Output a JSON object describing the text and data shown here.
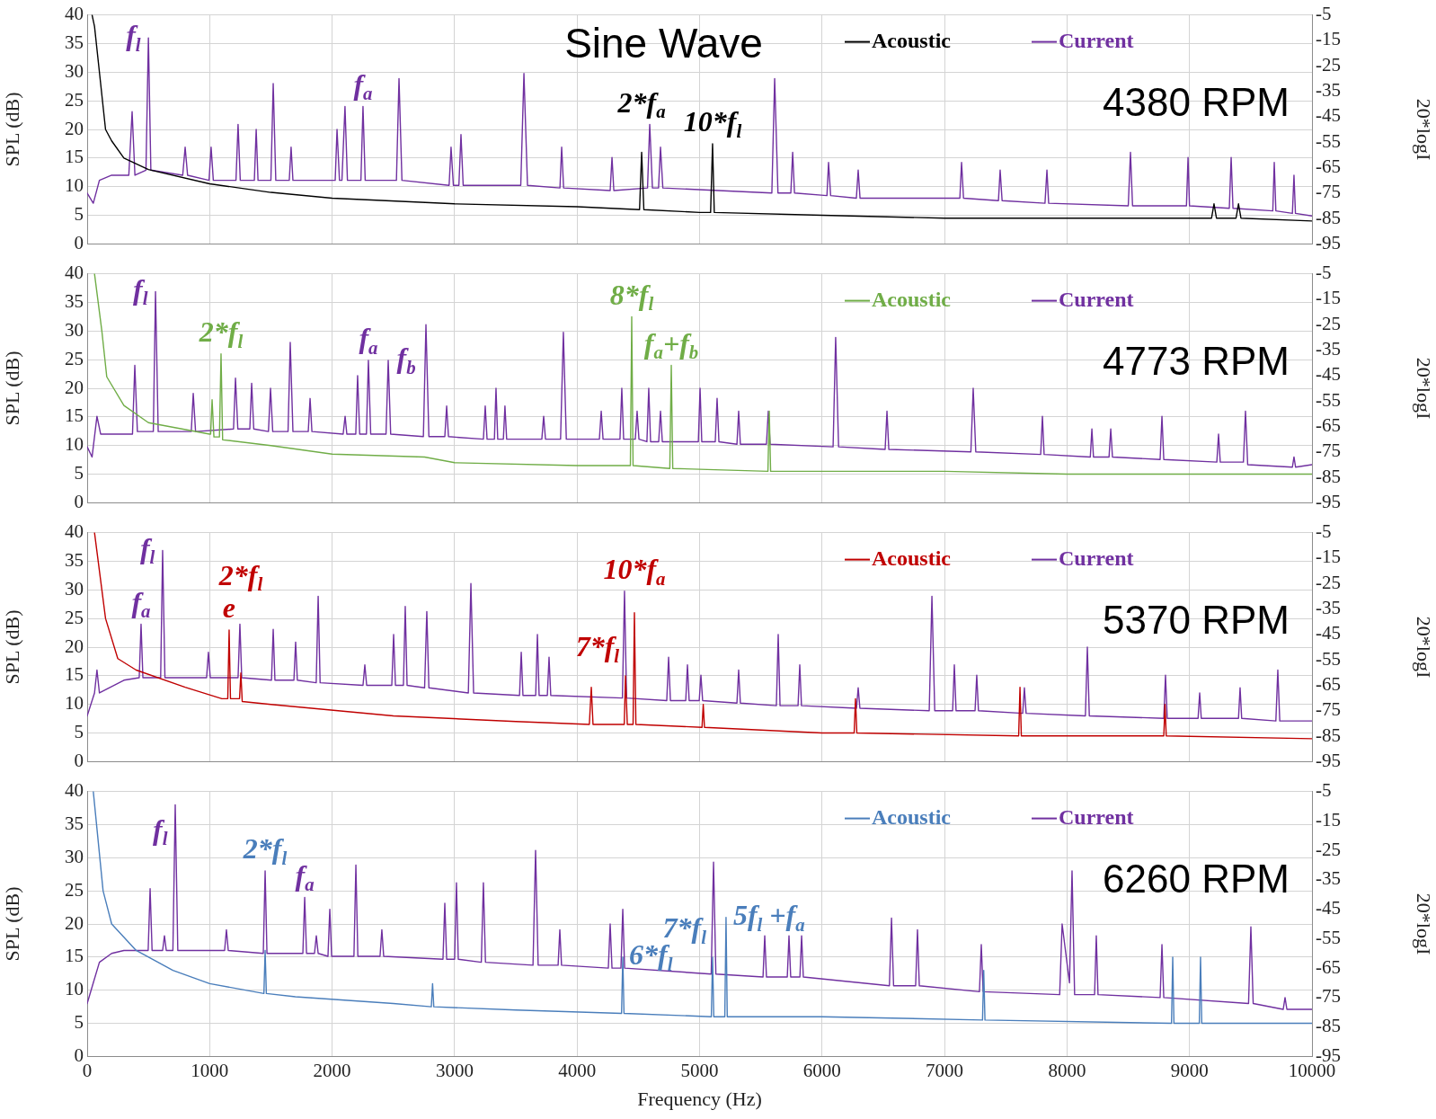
{
  "chart_data": [
    {
      "type": "line",
      "title": "Sine Wave",
      "ylabel": "SPL (dB)",
      "y2label": "20*logI",
      "xlim": [
        0,
        10000
      ],
      "xticks": [
        0,
        1000,
        2000,
        3000,
        4000,
        5000,
        6000,
        7000,
        8000,
        9000,
        10000
      ],
      "ylim": [
        0,
        40
      ],
      "yticks": [
        0,
        5,
        10,
        15,
        20,
        25,
        30,
        35,
        40
      ],
      "y2lim": [
        -95,
        -5
      ],
      "y2ticks": [
        -95,
        -85,
        -75,
        -65,
        -55,
        -45,
        -35,
        -25,
        -15,
        -5
      ],
      "grid": true,
      "legend": "top right",
      "marker": "none",
      "line_style": "solid",
      "tick_labels": "y",
      "series": [
        {
          "name": "Acoustic",
          "color": "#000000",
          "x": [
            40,
            60,
            100,
            150,
            200,
            300,
            500,
            1000,
            1500,
            2000,
            3000,
            4000,
            4510,
            4527,
            4545,
            5000,
            5090,
            5106,
            5120,
            6000,
            7000,
            8000,
            9180,
            9200,
            9220,
            9380,
            9400,
            9420,
            10000
          ],
          "values": [
            40,
            38,
            30,
            20,
            18,
            15,
            13,
            10.5,
            9,
            8,
            7,
            6.5,
            6,
            16,
            6,
            5.5,
            5.5,
            17.5,
            5.5,
            5,
            4.5,
            4.5,
            4.5,
            7,
            4.5,
            4.5,
            7,
            4.5,
            4
          ]
        },
        {
          "name": "Current",
          "color": "#7030a0",
          "axis": "y2",
          "x": [
            0,
            50,
            100,
            200,
            340,
            367,
            390,
            480,
            500,
            520,
            780,
            800,
            820,
            995,
            1012,
            1030,
            1215,
            1232,
            1250,
            1365,
            1380,
            1395,
            1500,
            1519,
            1540,
            1650,
            1665,
            1680,
            2025,
            2040,
            2060,
            2080,
            2105,
            2125,
            2235,
            2252,
            2270,
            2525,
            2546,
            2570,
            2955,
            2971,
            2990,
            3035,
            3052,
            3070,
            3540,
            3566,
            3595,
            3860,
            3874,
            3890,
            4270,
            4285,
            4300,
            4575,
            4593,
            4615,
            4665,
            4681,
            4700,
            5590,
            5613,
            5640,
            5745,
            5760,
            5775,
            6040,
            6053,
            6070,
            6280,
            6295,
            6310,
            7125,
            7139,
            7155,
            7440,
            7454,
            7470,
            7820,
            7836,
            7850,
            8500,
            8518,
            8535,
            8975,
            8988,
            9000,
            9325,
            9340,
            9355,
            9680,
            9692,
            9705,
            9840,
            9853,
            9865,
            10000
          ],
          "values": [
            -75,
            -79,
            -70,
            -68,
            -68,
            -43,
            -68,
            -66,
            -14,
            -66,
            -68,
            -57,
            -68,
            -70,
            -57,
            -70,
            -70,
            -48,
            -70,
            -70,
            -50,
            -70,
            -70,
            -32,
            -70,
            -70,
            -57,
            -70,
            -70,
            -50,
            -70,
            -70,
            -41,
            -70,
            -70,
            -41,
            -70,
            -70,
            -30,
            -70,
            -72,
            -57,
            -72,
            -72,
            -52,
            -72,
            -72,
            -28,
            -72,
            -73,
            -57,
            -73,
            -74,
            -61,
            -74,
            -73,
            -48,
            -73,
            -73,
            -57,
            -73,
            -75,
            -30,
            -75,
            -75,
            -59,
            -75,
            -76,
            -63,
            -76,
            -77,
            -66,
            -77,
            -77,
            -63,
            -77,
            -78,
            -66,
            -78,
            -79,
            -66,
            -79,
            -80,
            -59,
            -80,
            -80,
            -61,
            -80,
            -81,
            -61,
            -81,
            -82,
            -63,
            -82,
            -83,
            -68,
            -83,
            -84
          ]
        }
      ],
      "annotations": [
        "4380 RPM",
        {
          "text": "f$_{l}$",
          "x": 500,
          "y": 36
        },
        {
          "text": "f$_{a}$",
          "x": 2252,
          "y": 24
        },
        {
          "text": "2*f$_{a}$",
          "x": 4527,
          "y": 16
        },
        {
          "text": "10*f$_{l}$",
          "x": 5106,
          "y": 17.5
        }
      ]
    },
    {
      "type": "line",
      "ylabel": "SPL (dB)",
      "y2label": "20*logI",
      "xlim": [
        0,
        10000
      ],
      "xticks": [
        0,
        1000,
        2000,
        3000,
        4000,
        5000,
        6000,
        7000,
        8000,
        9000,
        10000
      ],
      "ylim": [
        0,
        40
      ],
      "yticks": [
        0,
        5,
        10,
        15,
        20,
        25,
        30,
        35,
        40
      ],
      "y2lim": [
        -95,
        -5
      ],
      "y2ticks": [
        -95,
        -85,
        -75,
        -65,
        -55,
        -45,
        -35,
        -25,
        -15,
        -5
      ],
      "grid": true,
      "legend": "top right",
      "marker": "none",
      "line_style": "solid",
      "tick_labels": "y",
      "series": [
        {
          "name": "Acoustic",
          "color": "#70ad47",
          "x": [
            60,
            120,
            160,
            300,
            500,
            1000,
            1008,
            1020,
            1035,
            1080,
            1093,
            1106,
            1500,
            2000,
            2755,
            3000,
            4000,
            4435,
            4446,
            4457,
            4757,
            4769,
            4781,
            5558,
            5569,
            5580,
            6000,
            7000,
            8000,
            9000,
            10000
          ],
          "values": [
            40,
            30,
            22,
            17,
            14,
            12,
            12,
            18,
            11.5,
            11.5,
            26,
            11,
            10,
            8.5,
            8,
            7,
            6.5,
            6.5,
            32.5,
            6.5,
            6,
            24,
            6,
            5.5,
            16,
            5.5,
            5.5,
            5.5,
            5,
            5,
            5
          ]
        },
        {
          "name": "Current",
          "color": "#7030a0",
          "axis": "y2",
          "x": [
            0,
            40,
            80,
            110,
            200,
            370,
            389,
            410,
            540,
            558,
            580,
            850,
            866,
            885,
            1195,
            1211,
            1230,
            1328,
            1343,
            1360,
            1480,
            1497,
            1515,
            1640,
            1658,
            1680,
            1805,
            1820,
            1835,
            2090,
            2106,
            2120,
            2193,
            2208,
            2225,
            2280,
            2296,
            2315,
            2440,
            2458,
            2478,
            2745,
            2766,
            2790,
            2920,
            2935,
            2950,
            3235,
            3250,
            3265,
            3325,
            3338,
            3352,
            3398,
            3411,
            3425,
            3712,
            3727,
            3742,
            3865,
            3888,
            3912,
            4182,
            4197,
            4212,
            4350,
            4365,
            4380,
            4475,
            4490,
            4505,
            4570,
            4585,
            4600,
            4666,
            4681,
            4696,
            4990,
            5004,
            5018,
            5128,
            5143,
            5158,
            5305,
            5319,
            5333,
            5546,
            5561,
            5576,
            6090,
            6111,
            6135,
            6515,
            6530,
            6545,
            7215,
            7234,
            7255,
            7785,
            7799,
            7813,
            8190,
            8203,
            8216,
            8343,
            8357,
            8371,
            8760,
            8775,
            8790,
            9223,
            9237,
            9251,
            9440,
            9457,
            9475,
            9840,
            9853,
            9866,
            10000
          ],
          "values": [
            -73,
            -77,
            -61,
            -68,
            -68,
            -68,
            -41,
            -67,
            -67,
            -12,
            -67,
            -67,
            -52,
            -67,
            -66,
            -46,
            -66,
            -66,
            -48,
            -66,
            -67,
            -50,
            -67,
            -67,
            -32,
            -67,
            -67,
            -54,
            -67,
            -68,
            -61,
            -68,
            -68,
            -45,
            -68,
            -68,
            -39,
            -68,
            -68,
            -39,
            -68,
            -69,
            -25,
            -69,
            -69,
            -57,
            -69,
            -70,
            -57,
            -70,
            -70,
            -50,
            -70,
            -70,
            -57,
            -70,
            -70,
            -61,
            -70,
            -70,
            -28,
            -70,
            -70,
            -59,
            -70,
            -70,
            -50,
            -70,
            -70,
            -59,
            -70,
            -71,
            -50,
            -71,
            -71,
            -59,
            -71,
            -71,
            -50,
            -71,
            -71,
            -54,
            -71,
            -72,
            -59,
            -72,
            -72,
            -59,
            -72,
            -73,
            -30,
            -73,
            -74,
            -59,
            -74,
            -75,
            -50,
            -75,
            -76,
            -61,
            -76,
            -77,
            -66,
            -77,
            -77,
            -66,
            -77,
            -78,
            -61,
            -78,
            -79,
            -68,
            -79,
            -79,
            -59,
            -80,
            -81,
            -77,
            -81,
            -80
          ]
        }
      ],
      "annotations": [
        "4773 RPM",
        {
          "text": "f$_{l}$",
          "x": 558,
          "y": 36.9
        },
        {
          "text": "2*f$_{l}$",
          "x": 1093,
          "y": 26
        },
        {
          "text": "f$_{a}$",
          "x": 2296,
          "y": 24.9
        },
        {
          "text": "f$_{b}$",
          "x": 2458,
          "y": 24.9
        },
        {
          "text": "8*f$_{l}$",
          "x": 4446,
          "y": 32.5
        },
        {
          "text": "f$_{a}$+f$_{b}$",
          "x": 4769,
          "y": 24
        }
      ]
    },
    {
      "type": "line",
      "ylabel": "SPL (dB)",
      "y2label": "20*logI",
      "xlim": [
        0,
        10000
      ],
      "xticks": [
        0,
        1000,
        2000,
        3000,
        4000,
        5000,
        6000,
        7000,
        8000,
        9000,
        10000
      ],
      "ylim": [
        0,
        40
      ],
      "yticks": [
        0,
        5,
        10,
        15,
        20,
        25,
        30,
        35,
        40
      ],
      "y2lim": [
        -95,
        -5
      ],
      "y2ticks": [
        -95,
        -85,
        -75,
        -65,
        -55,
        -45,
        -35,
        -25,
        -15,
        -5
      ],
      "grid": true,
      "legend": "top right",
      "marker": "none",
      "line_style": "solid",
      "tick_labels": "y",
      "series": [
        {
          "name": "Acoustic",
          "color": "#c00000",
          "x": [
            60,
            150,
            250,
            400,
            800,
            1100,
            1148,
            1159,
            1170,
            1244,
            1255,
            1266,
            1500,
            2500,
            3500,
            4100,
            4116,
            4130,
            4385,
            4395,
            4410,
            4457,
            4468,
            4480,
            5020,
            5030,
            5040,
            6000,
            6262,
            6273,
            6284,
            7605,
            7616,
            7627,
            8790,
            8800,
            8810,
            10000
          ],
          "values": [
            40,
            25,
            18,
            16,
            13,
            11,
            11,
            23,
            11,
            11,
            15.5,
            10.5,
            10,
            8,
            7,
            6.5,
            13,
            6.5,
            6.5,
            15,
            6.5,
            6.5,
            26,
            6.5,
            6,
            10,
            6,
            5,
            5,
            11,
            5,
            4.5,
            13,
            4.5,
            4.5,
            10,
            4.5,
            4
          ]
        },
        {
          "name": "Current",
          "color": "#7030a0",
          "axis": "y2",
          "x": [
            0,
            60,
            80,
            100,
            300,
            425,
            440,
            455,
            600,
            616,
            635,
            975,
            990,
            1005,
            1232,
            1247,
            1262,
            1505,
            1519,
            1533,
            1688,
            1702,
            1716,
            1870,
            1886,
            1902,
            2252,
            2267,
            2282,
            2487,
            2502,
            2517,
            2582,
            2597,
            2612,
            2755,
            2773,
            2790,
            3112,
            3133,
            3155,
            3530,
            3544,
            3558,
            3662,
            3676,
            3690,
            3757,
            3771,
            3785,
            4370,
            4387,
            4404,
            4732,
            4747,
            4762,
            4887,
            4901,
            4915,
            4997,
            5011,
            5025,
            5305,
            5319,
            5333,
            5627,
            5642,
            5657,
            5804,
            5818,
            5832,
            6281,
            6295,
            6309,
            6875,
            6897,
            6920,
            7066,
            7080,
            7094,
            7249,
            7263,
            7277,
            7638,
            7652,
            7666,
            8150,
            8166,
            8182,
            8790,
            8804,
            8818,
            9070,
            9083,
            9096,
            9400,
            9413,
            9426,
            9705,
            9721,
            9737,
            10000
          ],
          "values": [
            -77,
            -68,
            -59,
            -68,
            -63,
            -62,
            -41,
            -62,
            -62,
            -12,
            -62,
            -62,
            -52,
            -62,
            -62,
            -41,
            -62,
            -63,
            -43,
            -63,
            -63,
            -48,
            -63,
            -64,
            -30,
            -64,
            -65,
            -57,
            -65,
            -65,
            -45,
            -65,
            -65,
            -34,
            -65,
            -66,
            -36,
            -66,
            -68,
            -25,
            -68,
            -69,
            -52,
            -69,
            -69,
            -45,
            -69,
            -69,
            -54,
            -69,
            -70,
            -28,
            -70,
            -71,
            -54,
            -71,
            -71,
            -57,
            -71,
            -71,
            -61,
            -71,
            -72,
            -59,
            -72,
            -73,
            -45,
            -73,
            -73,
            -57,
            -73,
            -74,
            -66,
            -74,
            -75,
            -30,
            -75,
            -75,
            -57,
            -75,
            -75,
            -61,
            -75,
            -76,
            -66,
            -76,
            -77,
            -50,
            -77,
            -78,
            -61,
            -78,
            -78,
            -68,
            -78,
            -78,
            -66,
            -78,
            -79,
            -59,
            -79,
            -79
          ]
        }
      ],
      "annotations": [
        "5370 RPM",
        {
          "text": "f$_{l}$",
          "x": 616,
          "y": 36.9
        },
        {
          "text": "f$_{a}$",
          "x": 440,
          "y": 24
        },
        {
          "text": "e",
          "x": 1159,
          "y": 23
        },
        {
          "text": "2*f$_{l}$",
          "x": 1255,
          "y": 15.5
        },
        {
          "text": "7*f$_{l}$",
          "x": 4395,
          "y": 15
        },
        {
          "text": "10*f$_{a}$",
          "x": 4468,
          "y": 26
        }
      ]
    },
    {
      "type": "line",
      "xlabel": "Frequency (Hz)",
      "ylabel": "SPL (dB)",
      "y2label": "20*logI",
      "xlim": [
        0,
        10000
      ],
      "xticks": [
        0,
        1000,
        2000,
        3000,
        4000,
        5000,
        6000,
        7000,
        8000,
        9000,
        10000
      ],
      "ylim": [
        0,
        40
      ],
      "yticks": [
        0,
        5,
        10,
        15,
        20,
        25,
        30,
        35,
        40
      ],
      "y2lim": [
        -95,
        -5
      ],
      "y2ticks": [
        -95,
        -85,
        -75,
        -65,
        -55,
        -45,
        -35,
        -25,
        -15,
        -5
      ],
      "grid": true,
      "legend": "top right",
      "marker": "none",
      "line_style": "solid",
      "series": [
        {
          "name": "Acoustic",
          "color": "#4a7ebb",
          "x": [
            50,
            130,
            200,
            400,
            700,
            1000,
            1443,
            1453,
            1463,
            1700,
            2500,
            2810,
            2820,
            2830,
            3500,
            4363,
            4373,
            4383,
            5096,
            5106,
            5116,
            5206,
            5216,
            5226,
            6000,
            7310,
            7320,
            7330,
            8853,
            8863,
            8873,
            9080,
            9090,
            9100,
            9500,
            10000
          ],
          "values": [
            40,
            25,
            20,
            16,
            13,
            11,
            9.5,
            16,
            9.5,
            9,
            8,
            7.5,
            11,
            7.5,
            7,
            6.5,
            15,
            6.5,
            6,
            15,
            6,
            6,
            21,
            6,
            6,
            5.5,
            13,
            5.5,
            5,
            15,
            5,
            5,
            15,
            5,
            5,
            5
          ]
        },
        {
          "name": "Current",
          "color": "#7030a0",
          "axis": "y2",
          "x": [
            0,
            50,
            100,
            200,
            300,
            498,
            514,
            530,
            616,
            631,
            646,
            700,
            719,
            740,
            1122,
            1137,
            1152,
            1438,
            1453,
            1468,
            1761,
            1776,
            1791,
            1856,
            1871,
            1886,
            1966,
            1981,
            1996,
            2178,
            2194,
            2210,
            2391,
            2406,
            2421,
            2905,
            2920,
            2935,
            3000,
            3015,
            3030,
            3218,
            3235,
            3252,
            3640,
            3661,
            3682,
            3845,
            3859,
            3873,
            4255,
            4270,
            4285,
            4358,
            4373,
            4388,
            5095,
            5114,
            5133,
            5518,
            5532,
            5546,
            5716,
            5730,
            5744,
            5819,
            5833,
            5847,
            6550,
            6567,
            6584,
            6764,
            6779,
            6794,
            7285,
            7300,
            7315,
            7940,
            7960,
            8020,
            8041,
            8062,
            8225,
            8239,
            8253,
            8760,
            8775,
            8790,
            9482,
            9501,
            9520,
            9765,
            9780,
            9795,
            10000
          ],
          "values": [
            -77,
            -70,
            -63,
            -60,
            -59,
            -59,
            -38,
            -59,
            -59,
            -54,
            -59,
            -59,
            -9.5,
            -59,
            -59,
            -52,
            -59,
            -60,
            -32,
            -60,
            -60,
            -41,
            -60,
            -60,
            -54,
            -60,
            -61,
            -45,
            -61,
            -61,
            -30,
            -61,
            -61,
            -52,
            -61,
            -62,
            -43,
            -62,
            -62,
            -36,
            -62,
            -63,
            -36,
            -63,
            -64,
            -25,
            -64,
            -64,
            -52,
            -64,
            -65,
            -50,
            -65,
            -65,
            -45,
            -65,
            -67,
            -29,
            -67,
            -68,
            -54,
            -68,
            -68,
            -54,
            -68,
            -68,
            -54,
            -68,
            -71,
            -48,
            -71,
            -71,
            -52,
            -71,
            -73,
            -57,
            -73,
            -74,
            -50,
            -70,
            -32,
            -74,
            -74,
            -54,
            -74,
            -75,
            -57,
            -75,
            -77,
            -51,
            -77,
            -79,
            -75,
            -79,
            -79
          ]
        }
      ],
      "annotations": [
        "6260 RPM",
        {
          "text": "f$_{l}$",
          "x": 719,
          "y": 38
        },
        {
          "text": "f$_{a}$",
          "x": 1776,
          "y": 24
        },
        {
          "text": "2*f$_{l}$",
          "x": 1453,
          "y": 16
        },
        {
          "text": "6*f$_{l}$",
          "x": 4373,
          "y": 15
        },
        {
          "text": "7*f$_{l}$",
          "x": 5106,
          "y": 15
        },
        {
          "text": "5f$_{l}$ +f$_{a}$",
          "x": 5216,
          "y": 21
        }
      ]
    }
  ]
}
